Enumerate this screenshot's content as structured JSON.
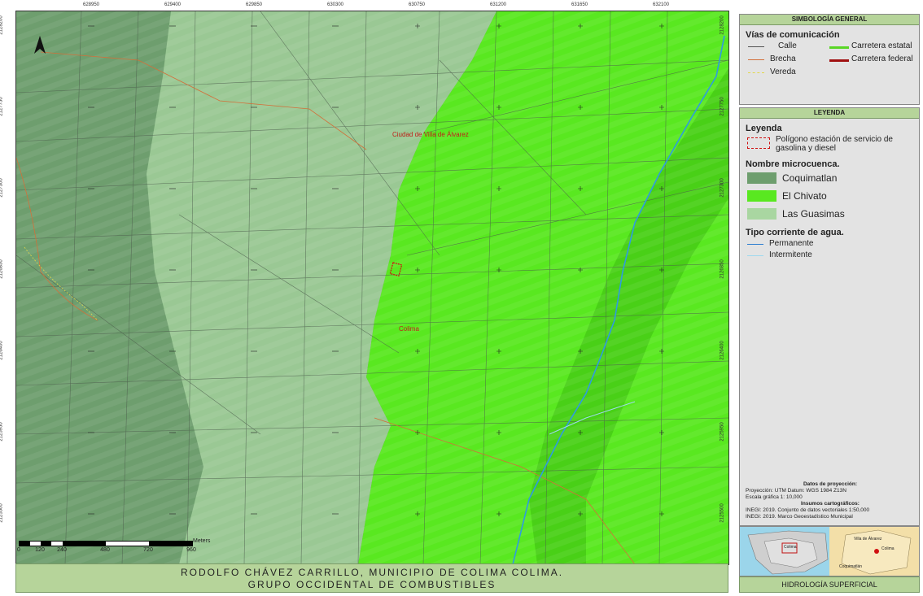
{
  "map": {
    "top_coords": [
      "628950",
      "629400",
      "629850",
      "630300",
      "630750",
      "631200",
      "631650",
      "632100"
    ],
    "left_coords": [
      "2128200",
      "2127750",
      "2127300",
      "2126850",
      "2126400",
      "2125950",
      "2125500"
    ],
    "right_coords": [
      "2128200",
      "2127750",
      "2127300",
      "2126850",
      "2126400",
      "2125950",
      "2125500"
    ],
    "place_labels": [
      "Ciudad de Villa de Álvarez",
      "Colima"
    ],
    "north_label": "N",
    "colors": {
      "coquimatlan": "#6e9e6e",
      "el_chivato": "#59e820",
      "las_guasimas": "#a9d6a1",
      "river": "#2f9be0",
      "brecha": "#d2703a",
      "polygon": "#d01010"
    }
  },
  "scale": {
    "unit": "Meters",
    "ticks": [
      "0",
      "120",
      "240",
      "480",
      "720",
      "960"
    ]
  },
  "title": {
    "line1": "RODOLFO CHÁVEZ CARRILLO, MUNICIPIO DE COLIMA COLIMA.",
    "line2": "GRUPO OCCIDENTAL DE COMBUSTIBLES"
  },
  "legend_general": {
    "header": "SIMBOLOGÍA GENERAL",
    "heading": "Vías de comunicación",
    "items": [
      {
        "label": "Calle",
        "color": "#555555",
        "style": "solid"
      },
      {
        "label": "Brecha",
        "color": "#d2703a",
        "style": "solid"
      },
      {
        "label": "Vereda",
        "color": "#e2d84a",
        "style": "dashed"
      },
      {
        "label": "Carretera estatal",
        "color": "#59d626",
        "style": "thick"
      },
      {
        "label": "Carretera federal",
        "color": "#a01010",
        "style": "thick"
      }
    ]
  },
  "legend": {
    "header": "LEYENDA",
    "heading": "Leyenda",
    "polygon_label_1": "Polígono estación de servicio de",
    "polygon_label_2": "gasolina y diesel",
    "microcuenca_heading": "Nombre microcuenca.",
    "microcuencas": [
      {
        "label": "Coquimatlan",
        "color": "#6e9e6e"
      },
      {
        "label": "El Chivato",
        "color": "#59e820"
      },
      {
        "label": "Las Guasimas",
        "color": "#a9d6a1"
      }
    ],
    "water_heading": "Tipo corriente de agua.",
    "water": [
      {
        "label": "Permanente",
        "color": "#2f7fd0"
      },
      {
        "label": "Intermitente",
        "color": "#9fd8ef"
      }
    ]
  },
  "projection": {
    "heading": "Datos de proyección:",
    "line1": "Proyección: UTM Datum: WGS 1984 Z13N",
    "line2": "Escala gráfica 1: 10,000",
    "sources_heading": "Insumos cartográficos:",
    "src1": "INEGI: 2019. Conjunto de datos vectoriales 1:50,000",
    "src2": "INEGI: 2019. Marco Geoestadístico Municipal"
  },
  "inset": {
    "label_a": "Colima",
    "label_b": "Colima",
    "label_c": "Coquimatlán",
    "label_d": "Villa de Álvarez"
  },
  "footer": {
    "text": "HIDROLOGÍA SUPERFICIAL"
  }
}
